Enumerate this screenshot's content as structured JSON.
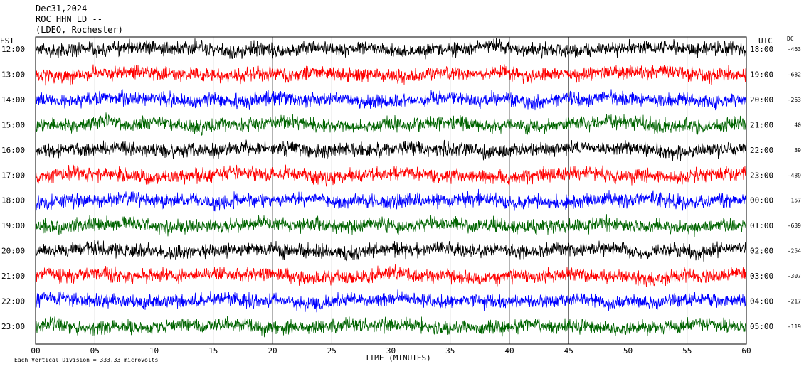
{
  "header": {
    "date": "Dec31,2024",
    "station": "ROC HHN LD --",
    "network": "(LDEO, Rochester)"
  },
  "left_axis_label": "EST",
  "right_axis_label": "UTC",
  "dc_label": "DC",
  "x_axis_label": "TIME (MINUTES)",
  "footer_note": "Each Vertical Division =  333.33 microvolts",
  "colors": {
    "black": "#000000",
    "red": "#ff0000",
    "blue": "#0000ff",
    "green": "#006400"
  },
  "chart_data": {
    "type": "line",
    "title": "Dec31,2024",
    "xlabel": "TIME (MINUTES)",
    "xlim": [
      0,
      60
    ],
    "x_ticks": [
      "00",
      "05",
      "10",
      "15",
      "20",
      "25",
      "30",
      "35",
      "40",
      "45",
      "50",
      "55",
      "60"
    ],
    "grid": "vertical",
    "series": [
      {
        "est": "12:00",
        "utc": "18:00",
        "dc": "-463",
        "color": "black"
      },
      {
        "est": "13:00",
        "utc": "19:00",
        "dc": "-682",
        "color": "red"
      },
      {
        "est": "14:00",
        "utc": "20:00",
        "dc": "-263",
        "color": "blue"
      },
      {
        "est": "15:00",
        "utc": "21:00",
        "dc": "40",
        "color": "green"
      },
      {
        "est": "16:00",
        "utc": "22:00",
        "dc": "39",
        "color": "black"
      },
      {
        "est": "17:00",
        "utc": "23:00",
        "dc": "-489",
        "color": "red"
      },
      {
        "est": "18:00",
        "utc": "00:00",
        "dc": "157",
        "color": "blue"
      },
      {
        "est": "19:00",
        "utc": "01:00",
        "dc": "-639",
        "color": "green"
      },
      {
        "est": "20:00",
        "utc": "02:00",
        "dc": "-254",
        "color": "black"
      },
      {
        "est": "21:00",
        "utc": "03:00",
        "dc": "-307",
        "color": "red"
      },
      {
        "est": "22:00",
        "utc": "04:00",
        "dc": "-217",
        "color": "blue"
      },
      {
        "est": "23:00",
        "utc": "05:00",
        "dc": "-119",
        "color": "green"
      }
    ]
  }
}
